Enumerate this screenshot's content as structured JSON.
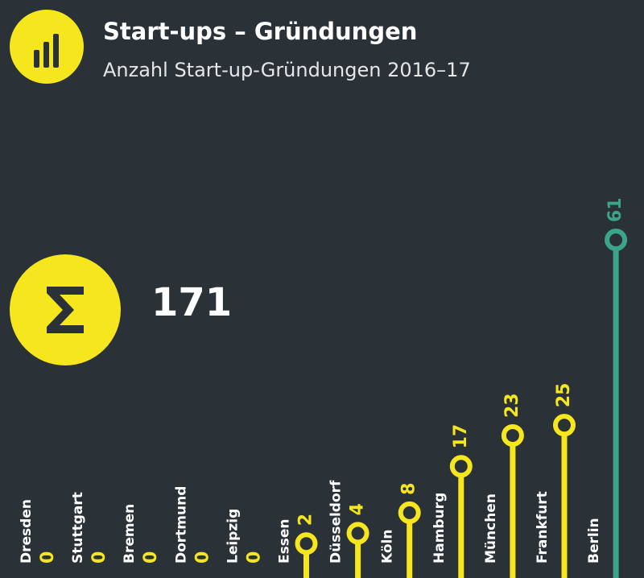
{
  "header": {
    "title": "Start-ups – Gründungen",
    "subtitle": "Anzahl Start-up-Gründungen 2016–17"
  },
  "summary": {
    "total": "171"
  },
  "colors": {
    "background": "#2a3238",
    "accent_yellow": "#f5e61e",
    "highlight_green": "#3aa58a",
    "text_white": "#ffffff"
  },
  "chart_data": {
    "type": "bar",
    "categories": [
      "Dresden",
      "Stuttgart",
      "Bremen",
      "Dortmund",
      "Leipzig",
      "Essen",
      "Düsseldorf",
      "Köln",
      "Hamburg",
      "München",
      "Frankfurt",
      "Berlin"
    ],
    "values": [
      0,
      0,
      0,
      0,
      0,
      2,
      4,
      8,
      17,
      23,
      25,
      61
    ],
    "highlight": "Berlin",
    "title": "Start-ups – Gründungen",
    "subtitle": "Anzahl Start-up-Gründungen 2016–17",
    "ylim": [
      0,
      61
    ]
  }
}
